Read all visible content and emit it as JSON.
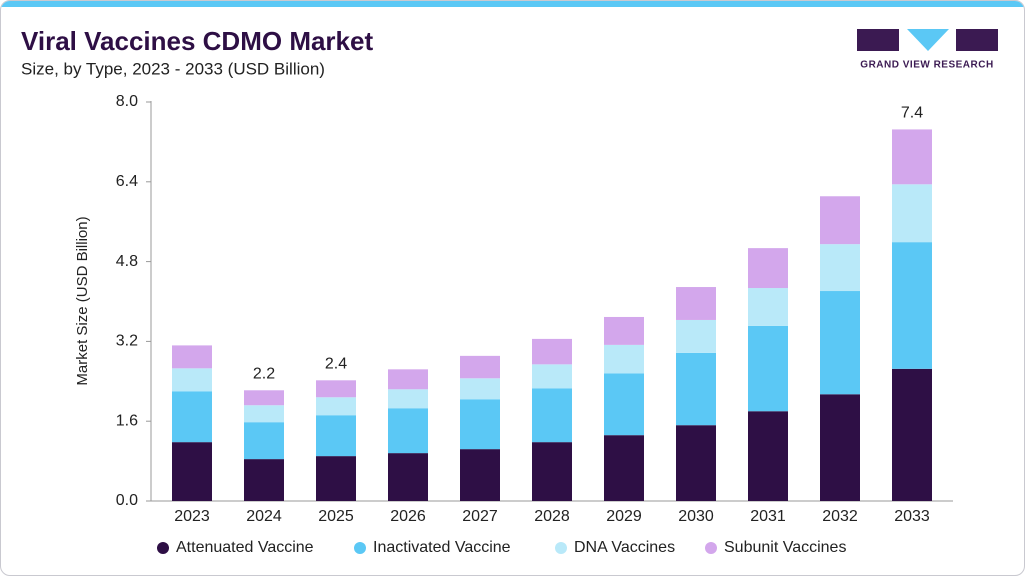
{
  "chart_data": {
    "type": "stacked_bar",
    "title": "Viral Vaccines CDMO Market",
    "subtitle": "Size, by Type, 2023 - 2033 (USD Billion)",
    "brand": "GRAND VIEW RESEARCH",
    "y_label": "Market Size (USD Billion)",
    "categories": [
      "2023",
      "2024",
      "2025",
      "2026",
      "2027",
      "2028",
      "2029",
      "2030",
      "2031",
      "2032",
      "2033"
    ],
    "series": [
      {
        "name": "Attenuated Vaccine",
        "color": "#2e0f45",
        "values": [
          1.18,
          0.84,
          0.9,
          0.96,
          1.04,
          1.18,
          1.32,
          1.52,
          1.8,
          2.14,
          2.65
        ]
      },
      {
        "name": "Inactivated Vaccine",
        "color": "#5bc8f5",
        "values": [
          1.02,
          0.74,
          0.82,
          0.9,
          1.0,
          1.08,
          1.24,
          1.45,
          1.71,
          2.07,
          2.54
        ]
      },
      {
        "name": "DNA Vaccines",
        "color": "#b9e9f9",
        "values": [
          0.46,
          0.34,
          0.36,
          0.38,
          0.42,
          0.48,
          0.57,
          0.66,
          0.76,
          0.94,
          1.16
        ]
      },
      {
        "name": "Subunit Vaccines",
        "color": "#d3a7ec",
        "values": [
          0.46,
          0.3,
          0.34,
          0.4,
          0.45,
          0.51,
          0.56,
          0.66,
          0.8,
          0.96,
          1.1
        ]
      }
    ],
    "annotations": [
      {
        "category": "2024",
        "value": 2.2
      },
      {
        "category": "2025",
        "value": 2.4
      },
      {
        "category": "2033",
        "value": 7.4
      }
    ],
    "ylim": [
      0,
      8
    ],
    "yticks": [
      {
        "value": 0,
        "label": "0.0"
      },
      1.6,
      3.2,
      4.8,
      6.4,
      {
        "value": 8,
        "label": "8.0"
      }
    ],
    "grid": false
  }
}
